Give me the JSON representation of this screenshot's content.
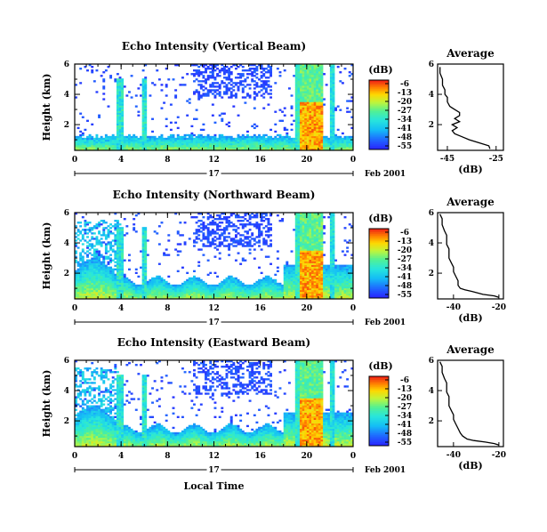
{
  "chart_data": [
    {
      "type": "heatmap",
      "title": "Echo Intensity (Vertical Beam)",
      "ylabel": "Height (km)",
      "xticks": [
        "0",
        "4",
        "8",
        "12",
        "16",
        "20",
        "0"
      ],
      "yticks": [
        "2",
        "4",
        "6"
      ],
      "xlim": [
        0,
        24
      ],
      "ylim": [
        0.3,
        6
      ],
      "date_label": "17",
      "date_suffix": "Feb 2001",
      "colorbar": {
        "label": "(dB)",
        "ticks": [
          "-6",
          "-13",
          "-20",
          "-27",
          "-34",
          "-41",
          "-48",
          "-55"
        ],
        "range": [
          -55,
          -6
        ]
      },
      "average": {
        "title": "Average",
        "xlabel": "(dB)",
        "xticks": [
          "-45",
          "-25"
        ],
        "yticks": [
          "2",
          "4",
          "6"
        ],
        "xlim": [
          -49,
          -22
        ],
        "ylim": [
          0.3,
          6
        ],
        "profile": [
          [
            -27.5,
            0.4
          ],
          [
            -28,
            0.6
          ],
          [
            -32,
            0.8
          ],
          [
            -36,
            1.0
          ],
          [
            -39,
            1.2
          ],
          [
            -42,
            1.4
          ],
          [
            -43,
            1.6
          ],
          [
            -41,
            1.8
          ],
          [
            -43,
            2.0
          ],
          [
            -40,
            2.2
          ],
          [
            -42,
            2.4
          ],
          [
            -40,
            2.6
          ],
          [
            -40,
            2.8
          ],
          [
            -42,
            3.0
          ],
          [
            -44,
            3.2
          ],
          [
            -45,
            3.5
          ],
          [
            -45,
            3.8
          ],
          [
            -46,
            4.0
          ],
          [
            -46,
            4.3
          ],
          [
            -47,
            4.6
          ],
          [
            -47,
            5.0
          ],
          [
            -48,
            5.4
          ],
          [
            -48,
            5.8
          ]
        ]
      }
    },
    {
      "type": "heatmap",
      "title": "Echo Intensity (Northward Beam)",
      "ylabel": "Height (km)",
      "xticks": [
        "0",
        "4",
        "8",
        "12",
        "16",
        "20",
        "0"
      ],
      "yticks": [
        "2",
        "4",
        "6"
      ],
      "xlim": [
        0,
        24
      ],
      "ylim": [
        0.3,
        6
      ],
      "date_label": "17",
      "date_suffix": "Feb 2001",
      "colorbar": {
        "label": "(dB)",
        "ticks": [
          "-6",
          "-13",
          "-20",
          "-27",
          "-34",
          "-41",
          "-48",
          "-55"
        ],
        "range": [
          -55,
          -6
        ]
      },
      "average": {
        "title": "Average",
        "xlabel": "(dB)",
        "xticks": [
          "-40",
          "-20"
        ],
        "yticks": [
          "2",
          "4",
          "6"
        ],
        "xlim": [
          -47,
          -18
        ],
        "ylim": [
          0.3,
          6
        ],
        "profile": [
          [
            -20,
            0.4
          ],
          [
            -22,
            0.5
          ],
          [
            -27,
            0.6
          ],
          [
            -32,
            0.8
          ],
          [
            -35,
            0.9
          ],
          [
            -37,
            1.0
          ],
          [
            -38,
            1.2
          ],
          [
            -38,
            1.5
          ],
          [
            -39,
            1.8
          ],
          [
            -40,
            2.1
          ],
          [
            -40,
            2.4
          ],
          [
            -41,
            2.7
          ],
          [
            -42,
            3.0
          ],
          [
            -42,
            3.3
          ],
          [
            -42,
            3.6
          ],
          [
            -43,
            3.9
          ],
          [
            -43,
            4.2
          ],
          [
            -43,
            4.5
          ],
          [
            -44,
            4.8
          ],
          [
            -45,
            5.2
          ],
          [
            -45,
            5.6
          ],
          [
            -46,
            5.9
          ]
        ]
      }
    },
    {
      "type": "heatmap",
      "title": "Echo Intensity (Eastward Beam)",
      "ylabel": "Height (km)",
      "xlabel": "Local Time",
      "xticks": [
        "0",
        "4",
        "8",
        "12",
        "16",
        "20",
        "0"
      ],
      "yticks": [
        "2",
        "4",
        "6"
      ],
      "xlim": [
        0,
        24
      ],
      "ylim": [
        0.3,
        6
      ],
      "date_label": "17",
      "date_suffix": "Feb 2001",
      "colorbar": {
        "label": "(dB)",
        "ticks": [
          "-6",
          "-13",
          "-20",
          "-27",
          "-34",
          "-41",
          "-48",
          "-55"
        ],
        "range": [
          -55,
          -6
        ]
      },
      "average": {
        "title": "Average",
        "xlabel": "(dB)",
        "xticks": [
          "-40",
          "-20"
        ],
        "yticks": [
          "2",
          "4",
          "6"
        ],
        "xlim": [
          -47,
          -18
        ],
        "ylim": [
          0.3,
          6
        ],
        "profile": [
          [
            -20,
            0.4
          ],
          [
            -22,
            0.5
          ],
          [
            -26,
            0.6
          ],
          [
            -31,
            0.7
          ],
          [
            -34,
            0.8
          ],
          [
            -36,
            1.0
          ],
          [
            -37,
            1.2
          ],
          [
            -38,
            1.5
          ],
          [
            -39,
            1.8
          ],
          [
            -40,
            2.1
          ],
          [
            -40,
            2.4
          ],
          [
            -41,
            2.7
          ],
          [
            -42,
            3.0
          ],
          [
            -42,
            3.3
          ],
          [
            -42,
            3.6
          ],
          [
            -43,
            3.9
          ],
          [
            -43,
            4.2
          ],
          [
            -43,
            4.5
          ],
          [
            -44,
            4.8
          ],
          [
            -45,
            5.2
          ],
          [
            -45,
            5.6
          ],
          [
            -46,
            5.9
          ]
        ]
      }
    }
  ]
}
